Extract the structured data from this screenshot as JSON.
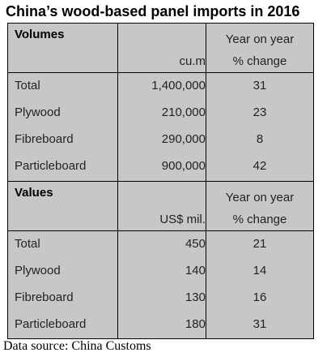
{
  "title": "China’s wood-based panel imports in 2016",
  "source": "Data source: China Customs",
  "colors": {
    "table_background": "#c7c7c7",
    "border": "#000000"
  },
  "chart_data": {
    "type": "table",
    "title": "China’s wood-based panel imports in 2016",
    "sections": [
      {
        "label": "Volumes",
        "unit": "cu.m",
        "change_header_line1": "Year on year",
        "change_header_line2": "% change",
        "rows": [
          {
            "name": "Total",
            "value": "1,400,000",
            "change": "31"
          },
          {
            "name": "Plywood",
            "value": "210,000",
            "change": "23"
          },
          {
            "name": "Fibreboard",
            "value": "290,000",
            "change": "8"
          },
          {
            "name": "Particleboard",
            "value": "900,000",
            "change": "42"
          }
        ]
      },
      {
        "label": "Values",
        "unit": "US$ mil.",
        "change_header_line1": "Year on year",
        "change_header_line2": "% change",
        "rows": [
          {
            "name": "Total",
            "value": "450",
            "change": "21"
          },
          {
            "name": "Plywood",
            "value": "140",
            "change": "14"
          },
          {
            "name": "Fibreboard",
            "value": "130",
            "change": "16"
          },
          {
            "name": "Particleboard",
            "value": "180",
            "change": "31"
          }
        ]
      }
    ]
  }
}
